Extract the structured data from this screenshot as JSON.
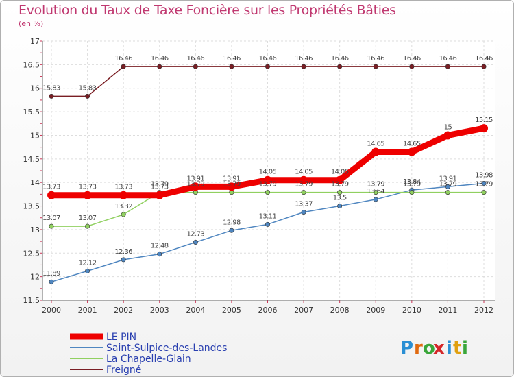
{
  "chart_data": {
    "type": "line",
    "title": "Evolution du Taux de Taxe Foncière sur les Propriétés Bâties",
    "unit_label": "(en %)",
    "xlabel": "",
    "ylabel": "",
    "x": [
      "2000",
      "2001",
      "2002",
      "2003",
      "2004",
      "2005",
      "2006",
      "2007",
      "2008",
      "2009",
      "2010",
      "2011",
      "2012"
    ],
    "ylim": [
      11.5,
      17
    ],
    "yticks": [
      11.5,
      12,
      12.5,
      13,
      13.5,
      14,
      14.5,
      15,
      15.5,
      16,
      16.5,
      17
    ],
    "ytick_labels": [
      "11.5",
      "12",
      "12.5",
      "13",
      "13.5",
      "14",
      "14.5",
      "15",
      "15.5",
      "16",
      "16.5",
      "17"
    ],
    "legend_position": "bottom-left",
    "series": [
      {
        "name": "Freigné",
        "color": "#7a1e24",
        "values": [
          15.83,
          15.83,
          16.46,
          16.46,
          16.46,
          16.46,
          16.46,
          16.46,
          16.46,
          16.46,
          16.46,
          16.46,
          16.46
        ],
        "labels": [
          "15.83",
          "15.83",
          "16.46",
          "16.46",
          "16.46",
          "16.46",
          "16.46",
          "16.46",
          "16.46",
          "16.46",
          "16.46",
          "16.46",
          "16.46"
        ]
      },
      {
        "name": "Saint-Sulpice-des-Landes",
        "color": "#4f86c0",
        "values": [
          11.89,
          12.12,
          12.36,
          12.48,
          12.73,
          12.98,
          13.11,
          13.37,
          13.5,
          13.64,
          13.84,
          13.91,
          13.98
        ],
        "labels": [
          "11.89",
          "12.12",
          "12.36",
          "12.48",
          "12.73",
          "12.98",
          "13.11",
          "13.37",
          "13.5",
          "13.64",
          "13.84",
          "13.91",
          "13.98"
        ]
      },
      {
        "name": "La Chapelle-Glain",
        "color": "#90d060",
        "values": [
          13.07,
          13.07,
          13.32,
          13.79,
          13.79,
          13.79,
          13.79,
          13.79,
          13.79,
          13.79,
          13.79,
          13.79,
          13.79
        ],
        "labels": [
          "13.07",
          "13.07",
          "13.32",
          "13.79",
          "13.79",
          "13.79",
          "13.79",
          "13.79",
          "13.79",
          "13.79",
          "13.79",
          "13.79",
          "13.79"
        ]
      },
      {
        "name": "LE PIN",
        "color": "#ee0000",
        "values": [
          13.73,
          13.73,
          13.73,
          13.73,
          13.91,
          13.91,
          14.05,
          14.05,
          14.05,
          14.65,
          14.65,
          15,
          15.15
        ],
        "labels": [
          "13.73",
          "13.73",
          "13.73",
          "13.73",
          "13.91",
          "13.91",
          "14.05",
          "14.05",
          "14.05",
          "14.65",
          "14.65",
          "15",
          "15.15"
        ]
      }
    ],
    "legend_order": [
      "LE PIN",
      "Saint-Sulpice-des-Landes",
      "La Chapelle-Glain",
      "Freigné"
    ]
  },
  "logo": {
    "letters": [
      "P",
      "r",
      "o",
      "x",
      "i",
      "t",
      "i"
    ],
    "colors": [
      "#2a8fd4",
      "#e06a10",
      "#3aa63a",
      "#d4282a",
      "#2a8fd4",
      "#e0a010",
      "#3aa63a"
    ]
  }
}
